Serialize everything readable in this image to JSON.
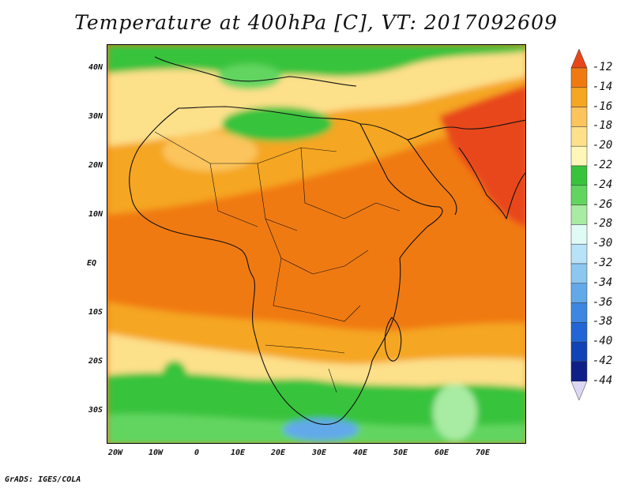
{
  "title": "Temperature at 400hPa [C], VT: 2017092609",
  "credit": "GrADS: IGES/COLA",
  "lat_labels": [
    "40N",
    "30N",
    "20N",
    "10N",
    "EQ",
    "10S",
    "20S",
    "30S"
  ],
  "lon_labels": [
    "20W",
    "10W",
    "0",
    "10E",
    "20E",
    "30E",
    "40E",
    "50E",
    "60E",
    "70E"
  ],
  "colorbar": {
    "levels": [
      "-12",
      "-14",
      "-16",
      "-18",
      "-20",
      "-22",
      "-24",
      "-26",
      "-28",
      "-30",
      "-32",
      "-34",
      "-36",
      "-38",
      "-40",
      "-42",
      "-44"
    ],
    "colors": [
      "#e8461a",
      "#f07a12",
      "#f5a623",
      "#fbc45c",
      "#fde08a",
      "#fef7b8",
      "#39c33c",
      "#62d560",
      "#a8eba2",
      "#e0fbf6",
      "#b8e2f8",
      "#8cc7f0",
      "#62a9ea",
      "#3d87e3",
      "#2266d5",
      "#1243b5",
      "#0e1f88",
      "#dcd8f4"
    ]
  }
}
